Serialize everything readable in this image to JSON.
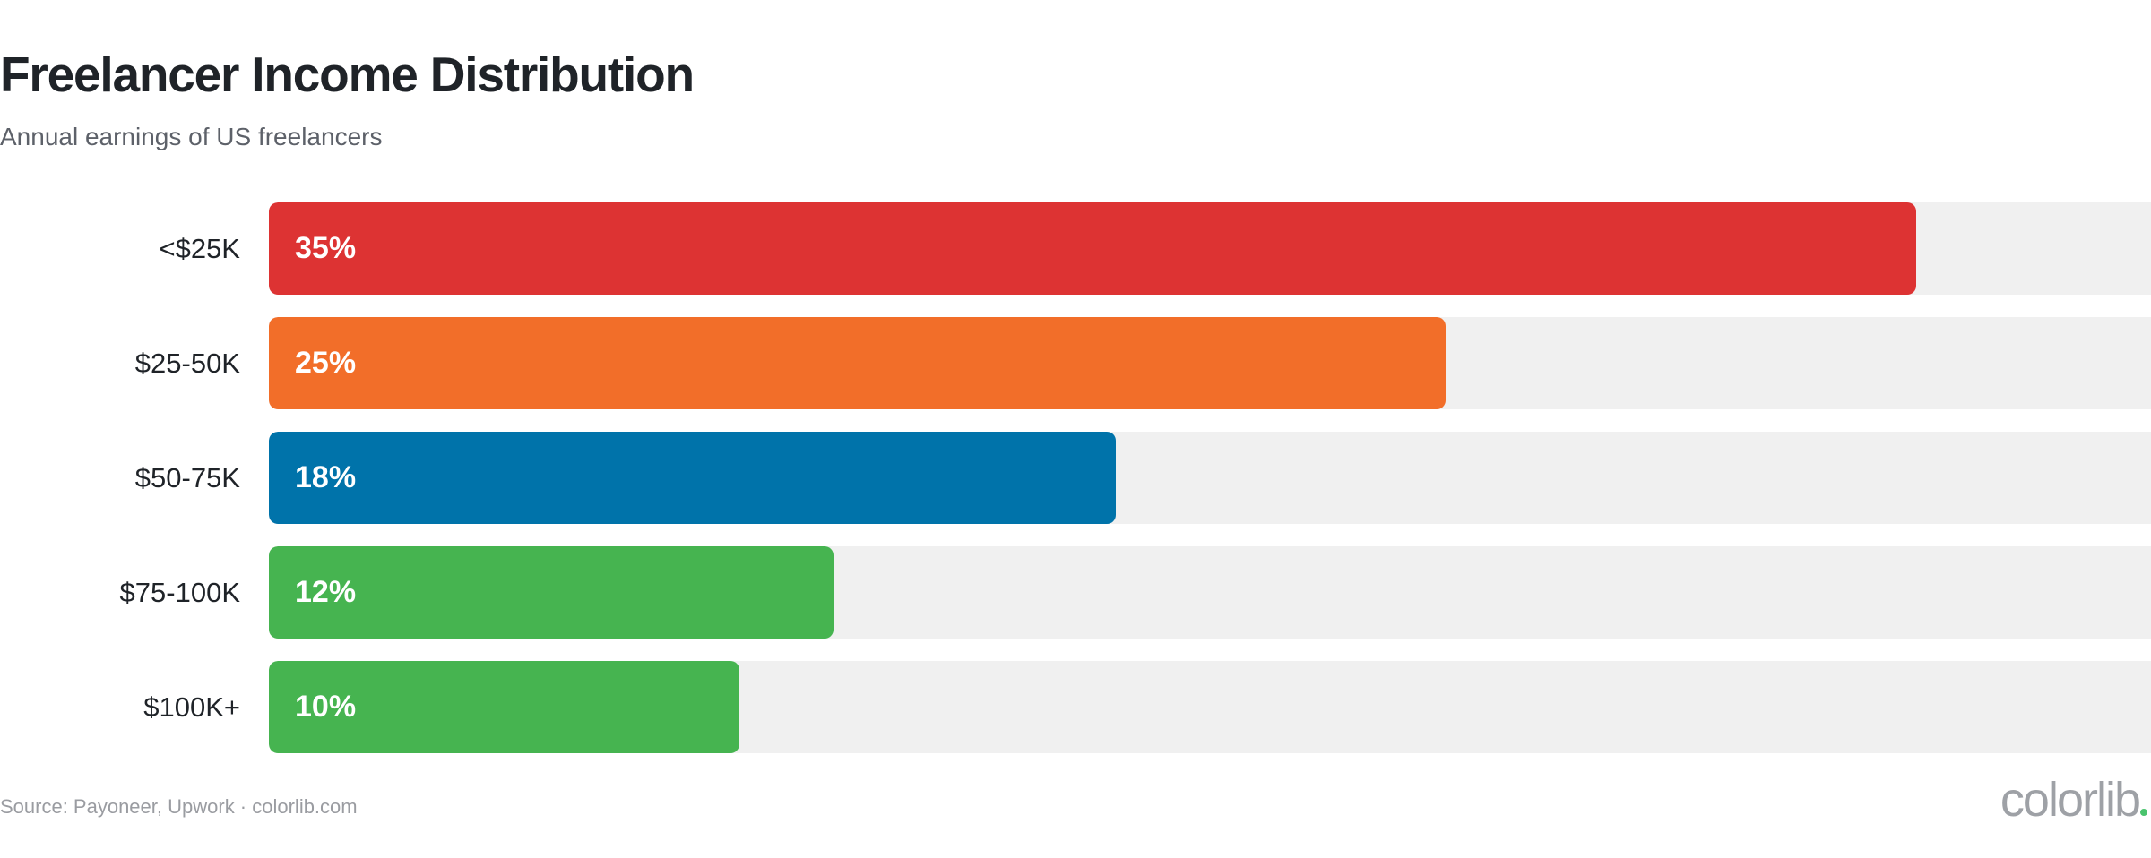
{
  "chart_data": {
    "type": "bar",
    "orientation": "horizontal",
    "title": "Freelancer Income Distribution",
    "subtitle": "Annual earnings of US freelancers",
    "categories": [
      "<$25K",
      "$25-50K",
      "$50-75K",
      "$75-100K",
      "$100K+"
    ],
    "values": [
      35,
      25,
      18,
      12,
      10
    ],
    "value_labels": [
      "35%",
      "25%",
      "18%",
      "12%",
      "10%"
    ],
    "unit": "%",
    "xlim": [
      0,
      40
    ],
    "colors": [
      "#dd3333",
      "#f26e29",
      "#0073aa",
      "#46b450",
      "#46b450"
    ],
    "track_color": "#f0f0f0",
    "grid": false,
    "legend": "none"
  },
  "footer": {
    "source": "Source: Payoneer, Upwork · colorlib.com",
    "logo_text": "colorlib",
    "logo_dot_color": "#49c36d"
  }
}
